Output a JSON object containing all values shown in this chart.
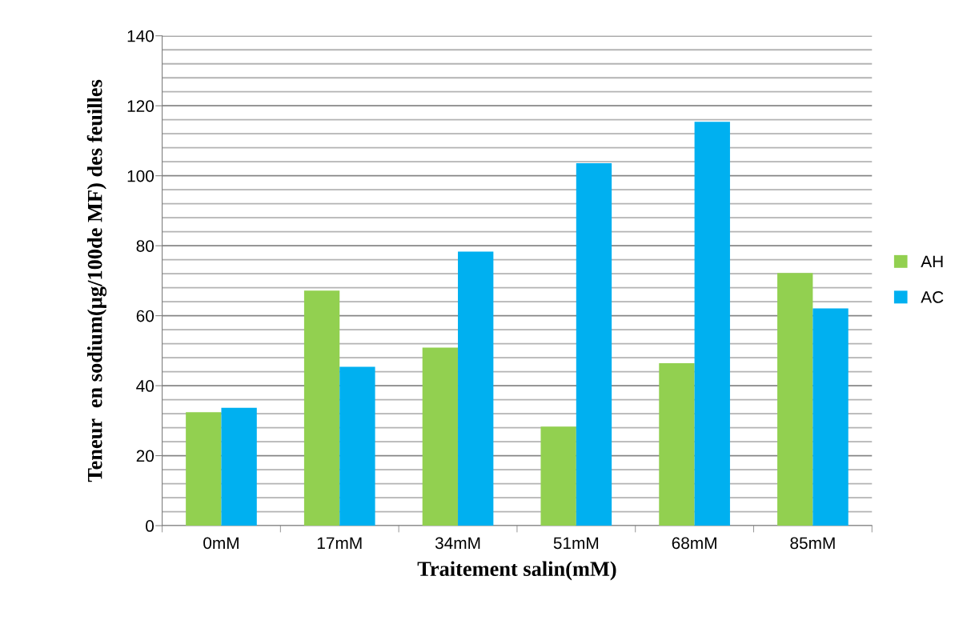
{
  "chart_data": {
    "type": "bar",
    "xlabel": "Traitement salin(mM)",
    "ylabel": "Teneur  en sodium(µg/100de MF) des feuilles",
    "categories": [
      "0mM",
      "17mM",
      "34mM",
      "51mM",
      "68mM",
      "85mM"
    ],
    "series": [
      {
        "name": "AH",
        "color": "#92d050",
        "values": [
          32.4,
          67.2,
          50.9,
          28.3,
          46.4,
          72.2
        ]
      },
      {
        "name": "AC",
        "color": "#00b0f0",
        "values": [
          33.7,
          45.4,
          78.3,
          103.6,
          115.4,
          62.1
        ]
      }
    ],
    "ylim": [
      0,
      140
    ],
    "yticks": [
      0,
      {
        "value": 4,
        "label": null
      },
      {
        "value": 8,
        "label": null
      },
      {
        "value": 12,
        "label": null
      },
      {
        "value": 16,
        "label": null
      },
      20,
      {
        "value": 24,
        "label": null
      },
      {
        "value": 28,
        "label": null
      },
      {
        "value": 32,
        "label": null
      },
      {
        "value": 36,
        "label": null
      },
      40,
      {
        "value": 44,
        "label": null
      },
      {
        "value": 48,
        "label": null
      },
      {
        "value": 52,
        "label": null
      },
      {
        "value": 56,
        "label": null
      },
      60,
      {
        "value": 64,
        "label": null
      },
      {
        "value": 68,
        "label": null
      },
      {
        "value": 72,
        "label": null
      },
      {
        "value": 76,
        "label": null
      },
      80,
      {
        "value": 84,
        "label": null
      },
      {
        "value": 88,
        "label": null
      },
      {
        "value": 92,
        "label": null
      },
      {
        "value": 96,
        "label": null
      },
      100,
      {
        "value": 104,
        "label": null
      },
      {
        "value": 108,
        "label": null
      },
      {
        "value": 112,
        "label": null
      },
      {
        "value": 116,
        "label": null
      },
      120,
      {
        "value": 124,
        "label": null
      },
      {
        "value": 128,
        "label": null
      },
      {
        "value": 132,
        "label": null
      },
      {
        "value": 136,
        "label": null
      },
      140
    ],
    "grid": "y",
    "legend": "right"
  }
}
